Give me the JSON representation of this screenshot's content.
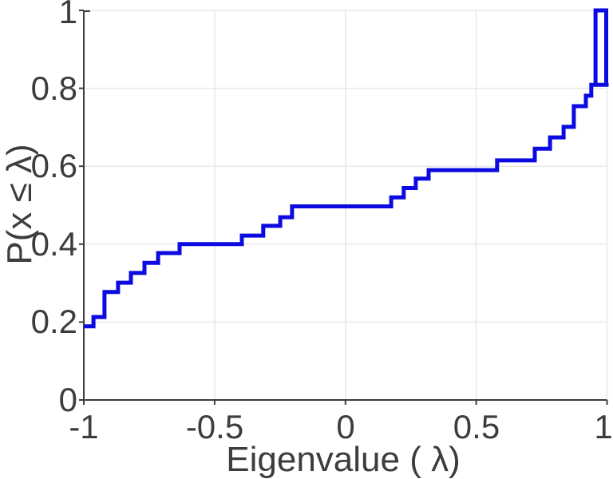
{
  "chart_data": {
    "type": "step",
    "subtype": "empirical-cdf",
    "title": "",
    "xlabel": "Eigenvalue ( λ)",
    "ylabel": "P(x ≤ λ)",
    "xlim": [
      -1,
      1
    ],
    "ylim": [
      0,
      1
    ],
    "grid": true,
    "legend": "none",
    "line_color": "#0a0ae1",
    "axis_color": "#3d3d3d",
    "grid_color": "#e8e8e8",
    "x_ticks": [
      {
        "v": -1,
        "label": "-1",
        "grid": false
      },
      {
        "v": -0.5,
        "label": "-0.5",
        "grid": true
      },
      {
        "v": 0,
        "label": "0",
        "grid": true
      },
      {
        "v": 0.5,
        "label": "0.5",
        "grid": true
      },
      {
        "v": 1,
        "label": "1",
        "grid": true
      }
    ],
    "y_ticks": [
      {
        "v": 0,
        "label": "0",
        "grid": false
      },
      {
        "v": 0.2,
        "label": "0.2",
        "grid": true
      },
      {
        "v": 0.4,
        "label": "0.4",
        "grid": true
      },
      {
        "v": 0.6,
        "label": "0.6",
        "grid": true
      },
      {
        "v": 0.8,
        "label": "0.8",
        "grid": true
      },
      {
        "v": 1,
        "label": "1",
        "grid": true
      }
    ],
    "steps": [
      [
        -1.0,
        0.189
      ],
      [
        -0.963,
        0.213
      ],
      [
        -0.921,
        0.277
      ],
      [
        -0.869,
        0.301
      ],
      [
        -0.82,
        0.326
      ],
      [
        -0.768,
        0.352
      ],
      [
        -0.716,
        0.377
      ],
      [
        -0.634,
        0.4
      ],
      [
        -0.396,
        0.422
      ],
      [
        -0.314,
        0.447
      ],
      [
        -0.249,
        0.469
      ],
      [
        -0.204,
        0.497
      ],
      [
        0.175,
        0.52
      ],
      [
        0.223,
        0.544
      ],
      [
        0.269,
        0.568
      ],
      [
        0.318,
        0.59
      ],
      [
        0.58,
        0.615
      ],
      [
        0.724,
        0.645
      ],
      [
        0.782,
        0.674
      ],
      [
        0.834,
        0.701
      ],
      [
        0.873,
        0.754
      ],
      [
        0.919,
        0.781
      ],
      [
        0.94,
        0.809
      ]
    ],
    "final_bar": {
      "x_start": 0.956,
      "x_end": 0.997,
      "y_bottom": 0.809,
      "y_top": 1.0
    }
  }
}
